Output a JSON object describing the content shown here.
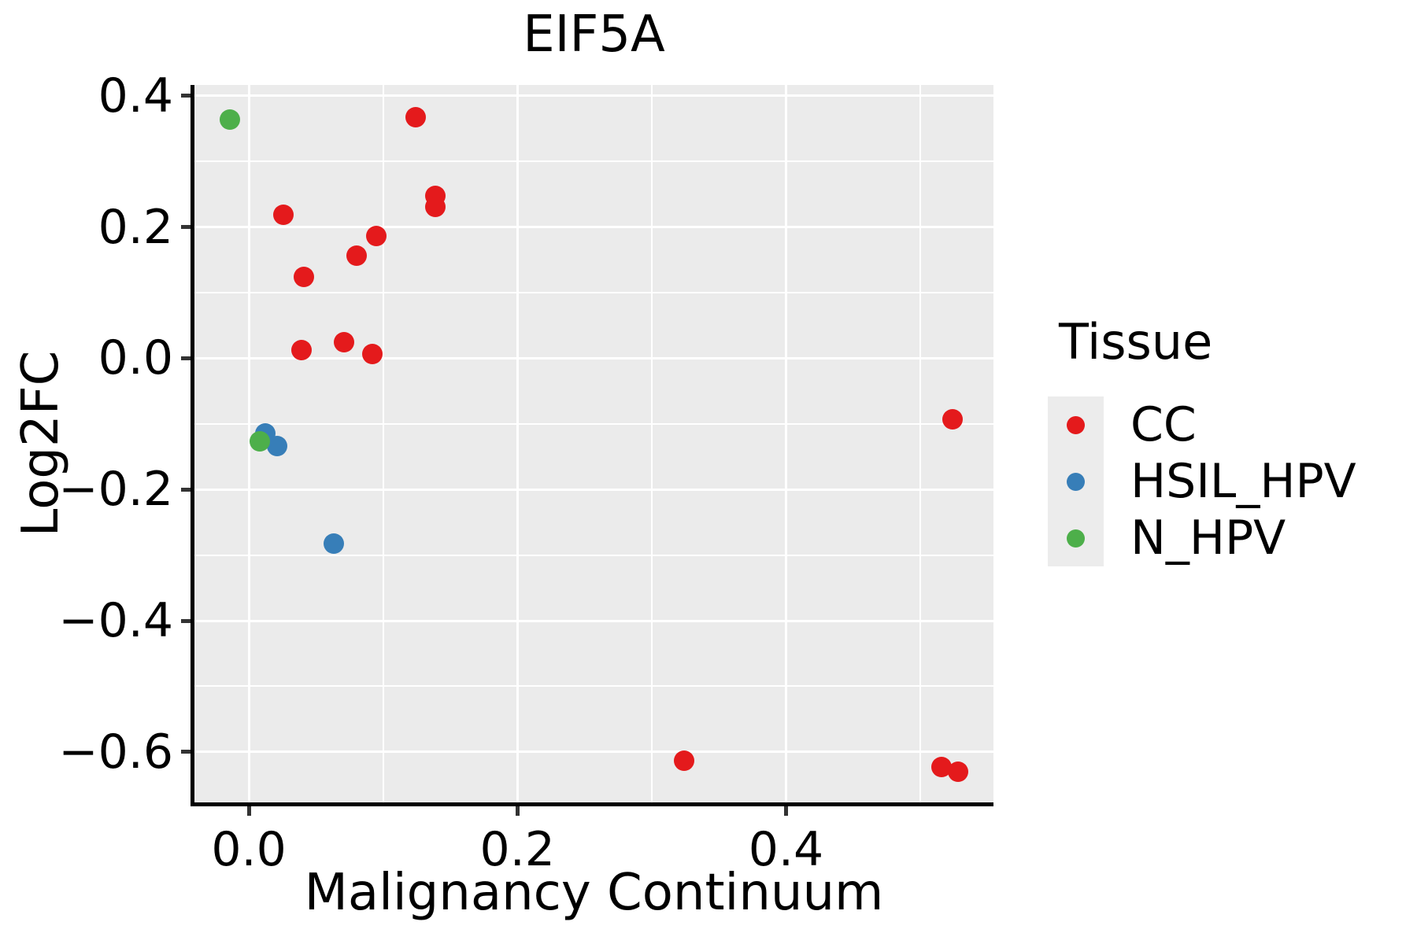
{
  "title": "EIF5A",
  "legend": {
    "title": "Tissue",
    "entries": [
      {
        "label": "CC",
        "color": "#E41A1C"
      },
      {
        "label": "HSIL_HPV",
        "color": "#377EB8"
      },
      {
        "label": "N_HPV",
        "color": "#4DAF4A"
      }
    ]
  },
  "colors": {
    "panel_bg": "#EBEBEB",
    "grid": "#FFFFFF",
    "spine": "#000000",
    "tick": "#333333",
    "legend_key_bg": "#ECECEC"
  },
  "chart_data": {
    "type": "scatter",
    "title": "EIF5A",
    "xlabel": "Malignancy Continuum",
    "ylabel": "Log2FC",
    "xlim": [
      -0.0405,
      0.5545
    ],
    "ylim": [
      -0.677,
      0.4167
    ],
    "grid": "on",
    "legend_position": "right",
    "x_major_ticks": [
      {
        "v": 0.0,
        "label": "0.0"
      },
      {
        "v": 0.2,
        "label": "0.2"
      },
      {
        "v": 0.4,
        "label": "0.4"
      }
    ],
    "x_minor_ticks": [
      0.1,
      0.3,
      0.5
    ],
    "y_major_ticks": [
      {
        "v": 0.4,
        "label": "0.4"
      },
      {
        "v": 0.2,
        "label": "0.2"
      },
      {
        "v": 0.0,
        "label": "0.0"
      },
      {
        "v": -0.2,
        "label": "−0.2"
      },
      {
        "v": -0.4,
        "label": "−0.4"
      },
      {
        "v": -0.6,
        "label": "−0.6"
      }
    ],
    "y_minor_ticks": [
      0.3,
      0.1,
      -0.1,
      -0.3,
      -0.5
    ],
    "series": [
      {
        "name": "CC",
        "color": "#E41A1C",
        "points": [
          [
            0.124,
            0.367
          ],
          [
            0.139,
            0.248
          ],
          [
            0.139,
            0.231
          ],
          [
            0.026,
            0.219
          ],
          [
            0.095,
            0.186
          ],
          [
            0.08,
            0.156
          ],
          [
            0.041,
            0.124
          ],
          [
            0.071,
            0.025
          ],
          [
            0.039,
            0.013
          ],
          [
            0.092,
            0.007
          ],
          [
            0.524,
            -0.093
          ],
          [
            0.324,
            -0.613
          ],
          [
            0.516,
            -0.623
          ],
          [
            0.528,
            -0.63
          ]
        ]
      },
      {
        "name": "HSIL_HPV",
        "color": "#377EB8",
        "points": [
          [
            0.012,
            -0.115
          ],
          [
            0.021,
            -0.134
          ],
          [
            0.063,
            -0.283
          ]
        ]
      },
      {
        "name": "N_HPV",
        "color": "#4DAF4A",
        "points": [
          [
            -0.014,
            0.364
          ],
          [
            0.008,
            -0.127
          ]
        ]
      }
    ]
  }
}
